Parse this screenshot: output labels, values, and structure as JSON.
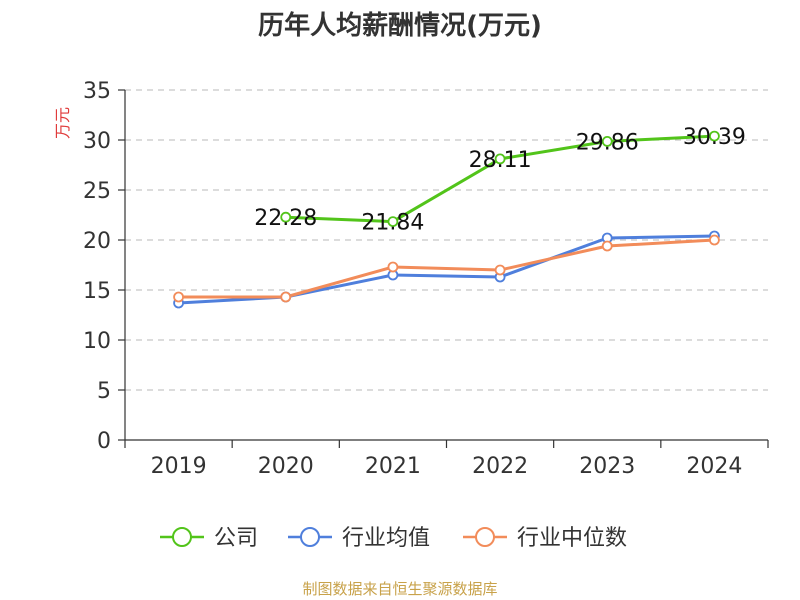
{
  "chart_data": {
    "type": "line",
    "title": "历年人均薪酬情况(万元)",
    "ylabel": "万元",
    "xlabel": "",
    "categories": [
      "2019",
      "2020",
      "2021",
      "2022",
      "2023",
      "2024"
    ],
    "ylim": [
      0,
      35
    ],
    "yticks": [
      0,
      5,
      10,
      15,
      20,
      25,
      30,
      35
    ],
    "grid": true,
    "legend_position": "bottom",
    "series": [
      {
        "name": "公司",
        "color": "#52c41a",
        "values": [
          null,
          22.28,
          21.84,
          28.11,
          29.86,
          30.39
        ],
        "labels": [
          "",
          "22.28",
          "21.84",
          "28.11",
          "29.86",
          "30.39"
        ]
      },
      {
        "name": "行业均值",
        "color": "#4f7fdc",
        "values": [
          13.7,
          14.3,
          16.5,
          16.3,
          20.2,
          20.4
        ]
      },
      {
        "name": "行业中位数",
        "color": "#f28c5a",
        "values": [
          14.3,
          14.3,
          17.3,
          17.0,
          19.4,
          20.0
        ]
      }
    ]
  },
  "footer": "制图数据来自恒生聚源数据库"
}
